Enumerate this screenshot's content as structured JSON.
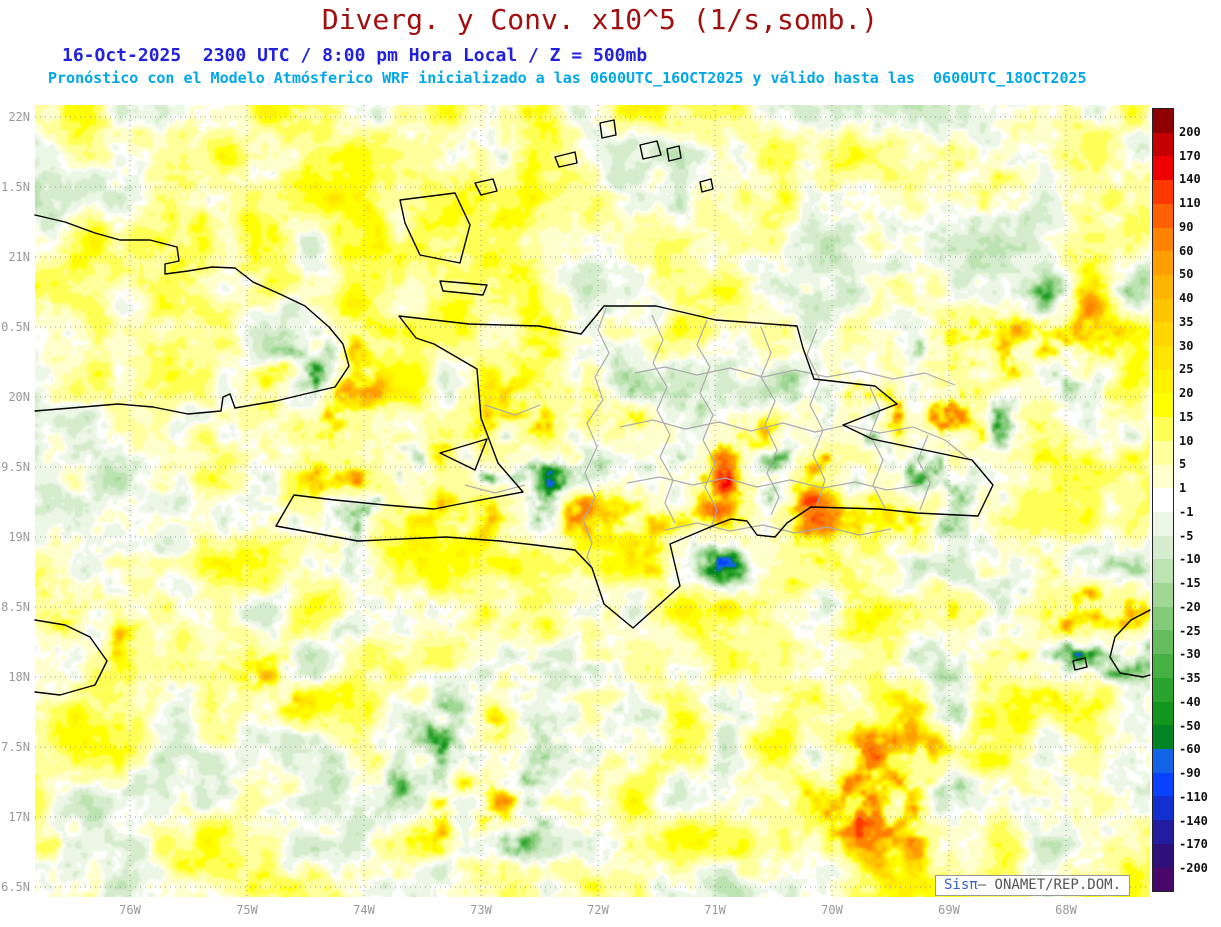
{
  "title": "Diverg. y Conv. x10^5 (1/s,somb.)",
  "subtitle1": "16-Oct-2025  2300 UTC / 8:00 pm Hora Local / Z = 500mb",
  "subtitle2": "Pronóstico con el Modelo Atmósferico WRF inicializado a las 0600UTC_16OCT2025 y válido hasta las  0600UTC_18OCT2025",
  "credit": {
    "prefix": "Sisπ",
    "suffix": "– ONAMET/REP.DOM."
  },
  "axes": {
    "lat_labels": [
      "22N",
      "1.5N",
      "21N",
      "0.5N",
      "20N",
      "9.5N",
      "19N",
      "8.5N",
      "18N",
      "7.5N",
      "17N",
      "6.5N"
    ],
    "lon_labels": [
      "76W",
      "75W",
      "74W",
      "73W",
      "72W",
      "71W",
      "70W",
      "69W",
      "68W"
    ]
  },
  "colorbar": {
    "labels": [
      "200",
      "170",
      "140",
      "110",
      "90",
      "60",
      "50",
      "40",
      "35",
      "30",
      "25",
      "20",
      "15",
      "10",
      "5",
      "1",
      "-1",
      "-5",
      "-10",
      "-15",
      "-20",
      "-25",
      "-30",
      "-35",
      "-40",
      "-50",
      "-60",
      "-90",
      "-110",
      "-140",
      "-170",
      "-200"
    ],
    "colors": [
      "#8f0000",
      "#c40000",
      "#ef0000",
      "#ff3800",
      "#ff6000",
      "#ff8200",
      "#ff9e00",
      "#ffb400",
      "#ffc600",
      "#ffd600",
      "#ffe400",
      "#fff200",
      "#ffff00",
      "#ffff55",
      "#ffff9b",
      "#ffffcd",
      "#ffffff",
      "#ecf7e6",
      "#d5edcc",
      "#bce3b2",
      "#a0d795",
      "#83ca79",
      "#65bd5e",
      "#47b043",
      "#2aa32c",
      "#12961c",
      "#008424",
      "#1263e6",
      "#0841ff",
      "#1230cf",
      "#201e9e",
      "#2e1178",
      "#48086a"
    ]
  },
  "map_colors": {
    "grid": "#999999",
    "coast": "#000000",
    "admin": "#ababab"
  }
}
